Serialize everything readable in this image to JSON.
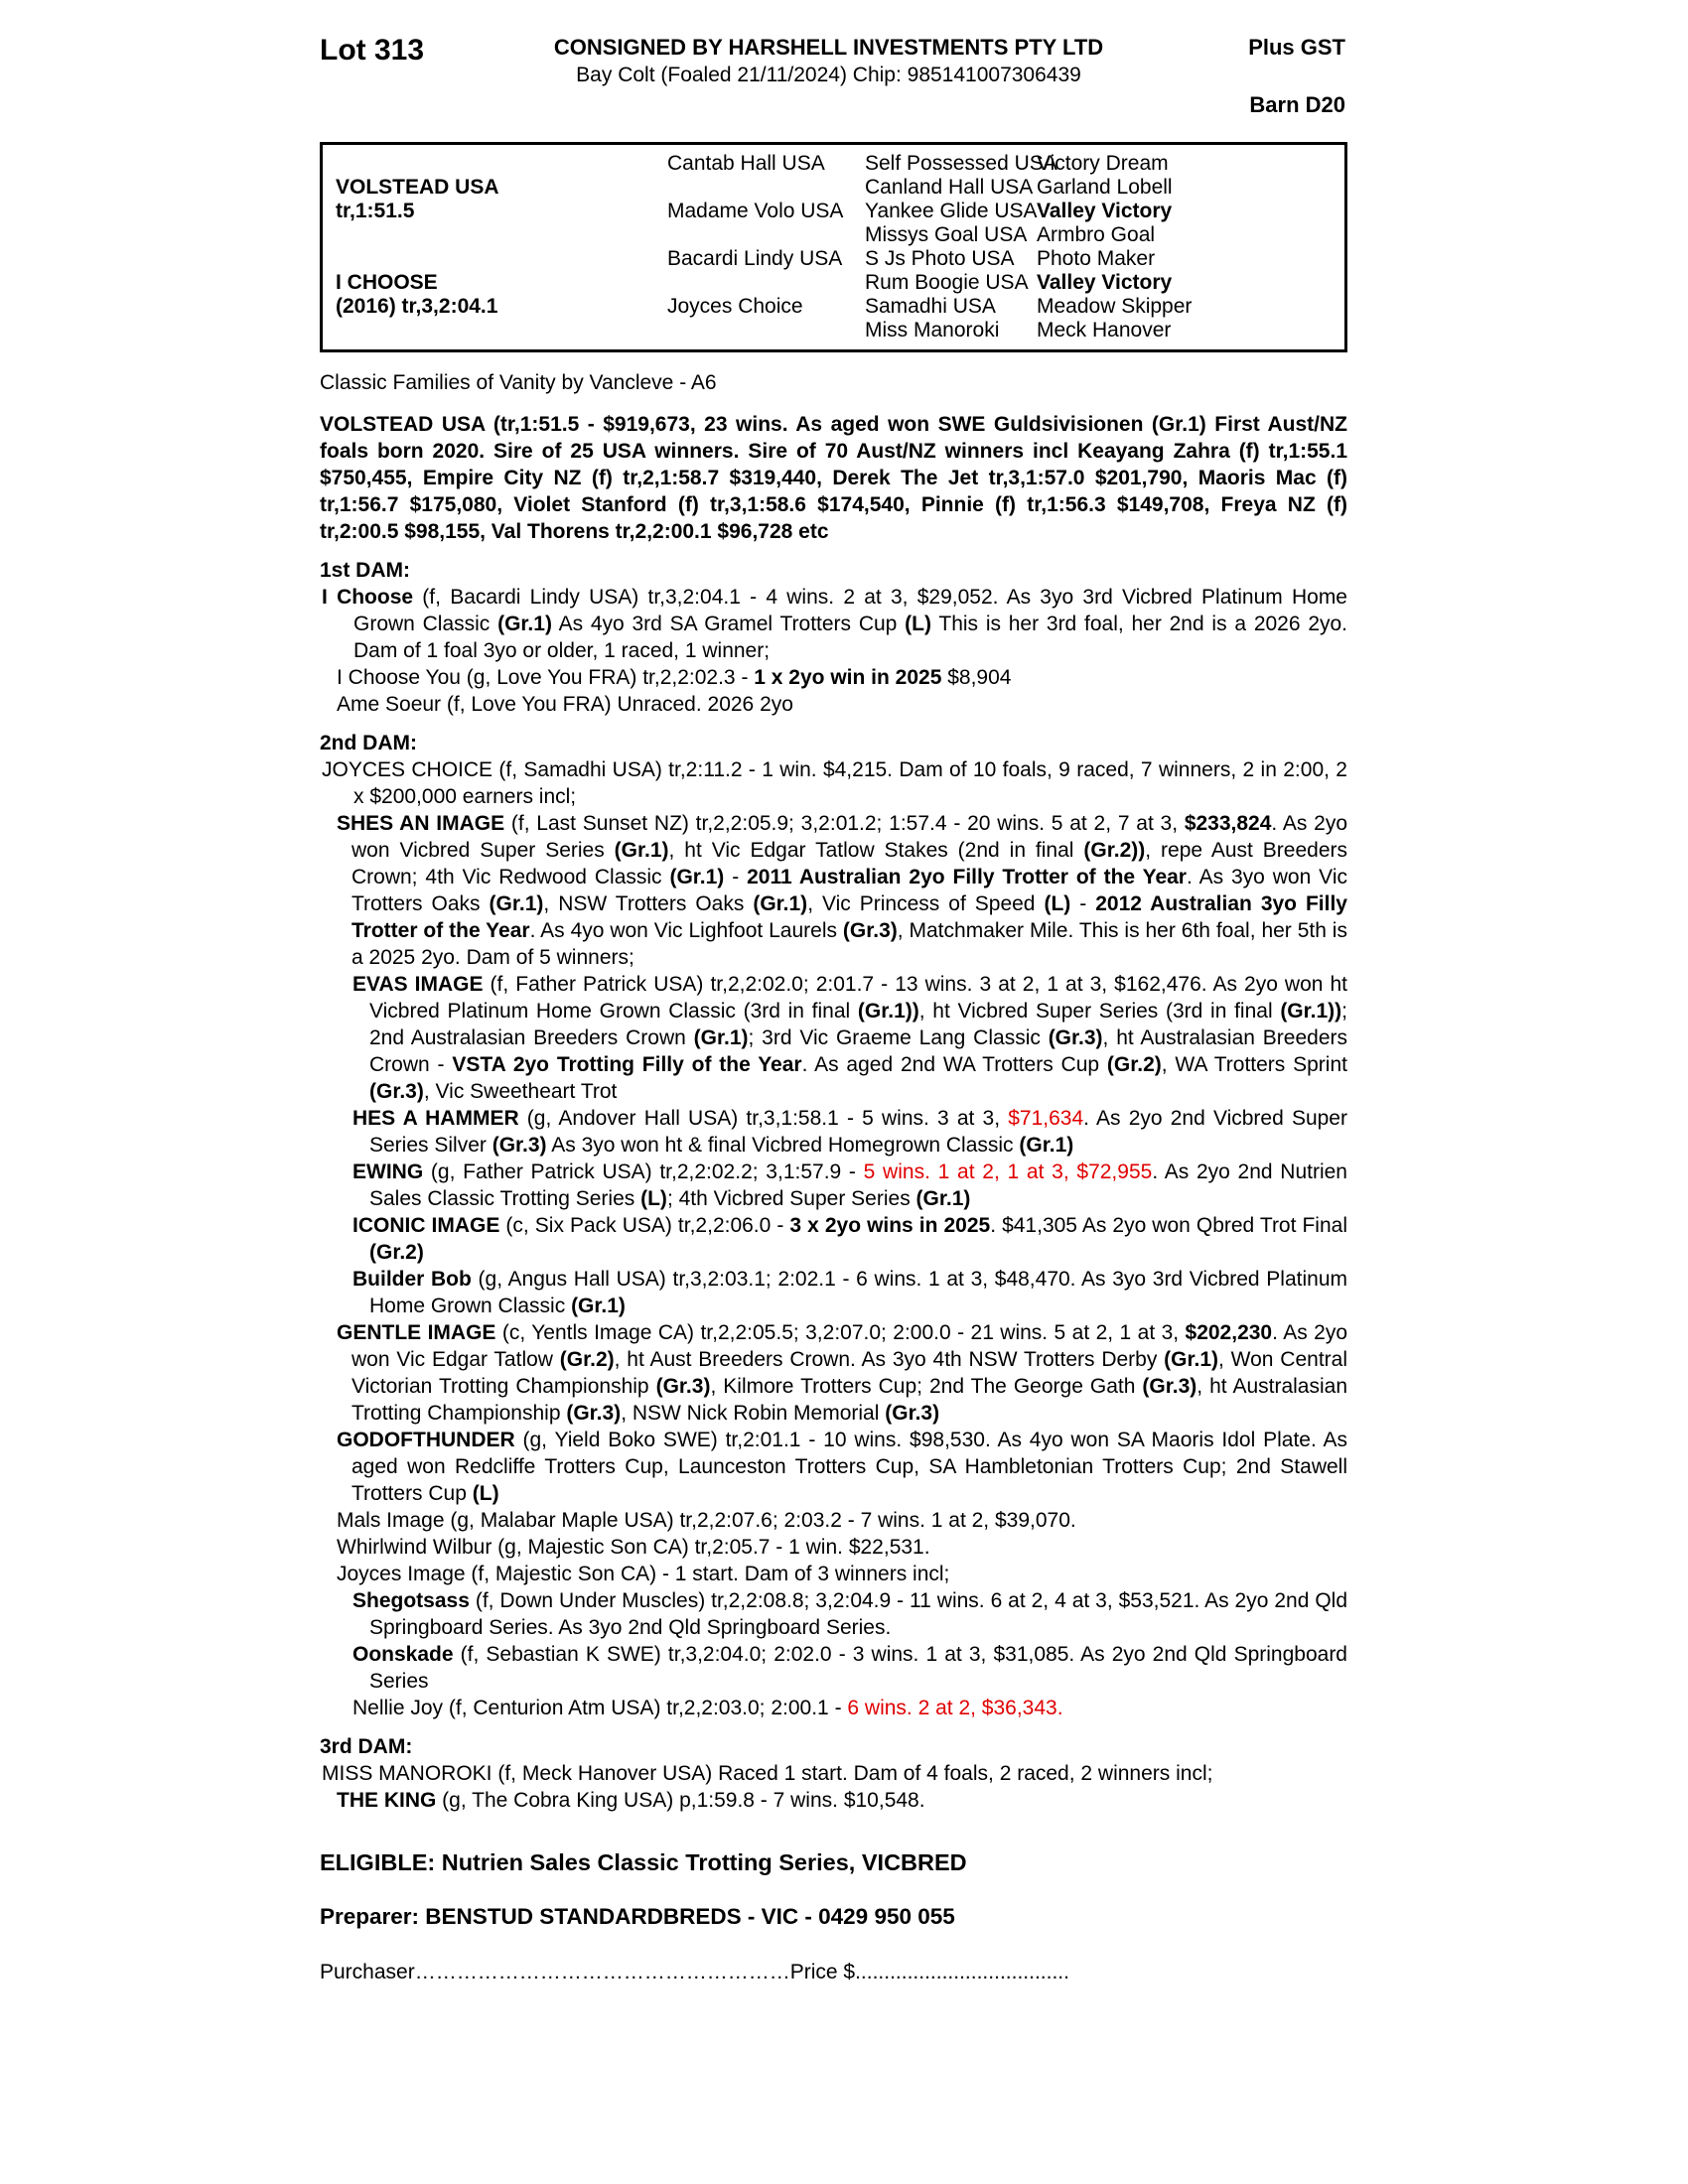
{
  "colors": {
    "highlight_red": "#e00000"
  },
  "header": {
    "lot": "Lot 313",
    "consignor": "CONSIGNED BY HARSHELL INVESTMENTS PTY LTD",
    "plus_gst": "Plus GST",
    "description": "Bay Colt (Foaled 21/11/2024) Chip: 985141007306439",
    "barn": "Barn D20"
  },
  "pedigree": {
    "g1": [
      {
        "name": "VOLSTEAD USA",
        "record": "tr,1:51.5"
      },
      {
        "name": "I CHOOSE",
        "record": "(2016) tr,3,2:04.1"
      }
    ],
    "g2": [
      "Cantab Hall USA",
      "Madame Volo USA",
      "Bacardi Lindy USA",
      "Joyces Choice"
    ],
    "g3": [
      "Self Possessed USA",
      "Canland Hall USA",
      "Yankee Glide USA",
      "Missys Goal USA",
      "S Js Photo USA",
      "Rum Boogie USA",
      "Samadhi USA",
      "Miss Manoroki"
    ],
    "g4": [
      "Victory Dream",
      "Garland Lobell",
      "Valley Victory",
      "Armbro Goal",
      "Photo Maker",
      "Valley Victory",
      "Meadow Skipper",
      "Meck Hanover"
    ]
  },
  "body": {
    "family_line": "Classic Families of Vanity by Vancleve - A6",
    "blocks": [
      {
        "type": "para",
        "cls": "sire-para",
        "name": "sire-summary-paragraph",
        "segments": [
          {
            "t": "VOLSTEAD USA (tr,1:51.5 - $919,673, 23 wins. As aged won SWE Guldsivisionen (Gr.1) First Aust/NZ foals born 2020. Sire of 25 USA winners. Sire of 70 Aust/NZ winners incl Keayang Zahra (f) tr,1:55.1 $750,455, Empire City NZ (f) tr,2,1:58.7 $319,440, Derek The Jet tr,3,1:57.0 $201,790, Maoris Mac (f) tr,1:56.7 $175,080, Violet Stanford (f) tr,3,1:58.6 $174,540, Pinnie (f) tr,1:56.3 $149,708, Freya NZ (f) tr,2:00.5 $98,155, Val Thorens tr,2,2:00.1 $96,728 etc"
          }
        ]
      },
      {
        "type": "heading",
        "text": "1st DAM:"
      },
      {
        "type": "para",
        "indent": 0,
        "segments": [
          {
            "t": "I Choose",
            "b": true
          },
          {
            "t": " (f, Bacardi Lindy USA) tr,3,2:04.1 - 4 wins. 2 at 3, $29,052. As 3yo 3rd Vicbred Platinum Home Grown Classic "
          },
          {
            "t": "(Gr.1)",
            "b": true
          },
          {
            "t": " As 4yo 3rd SA Gramel Trotters Cup "
          },
          {
            "t": "(L)",
            "b": true
          },
          {
            "t": " This is her 3rd foal, her 2nd is a 2026 2yo. Dam of 1 foal 3yo or older, 1 raced, 1 winner;"
          }
        ]
      },
      {
        "type": "para",
        "indent": 1,
        "segments": [
          {
            "t": "I Choose You (g, Love You FRA) tr,2,2:02.3 - "
          },
          {
            "t": "1 x 2yo win in 2025",
            "b": true
          },
          {
            "t": " $8,904"
          }
        ]
      },
      {
        "type": "para",
        "indent": 1,
        "segments": [
          {
            "t": "Ame Soeur (f, Love You FRA) Unraced. 2026 2yo"
          }
        ]
      },
      {
        "type": "heading",
        "text": "2nd DAM:"
      },
      {
        "type": "para",
        "indent": 0,
        "segments": [
          {
            "t": "JOYCES CHOICE (f, Samadhi USA) tr,2:11.2 - 1 win. $4,215. Dam of 10 foals, 9 raced, 7 winners, 2 in 2:00, 2 x $200,000 earners incl;"
          }
        ]
      },
      {
        "type": "para",
        "indent": 1,
        "segments": [
          {
            "t": "SHES AN IMAGE",
            "b": true
          },
          {
            "t": " (f, Last Sunset NZ) tr,2,2:05.9; 3,2:01.2; 1:57.4 - 20 wins. 5 at 2, 7 at 3, "
          },
          {
            "t": "$233,824",
            "b": true
          },
          {
            "t": ". As 2yo won Vicbred Super Series "
          },
          {
            "t": "(Gr.1)",
            "b": true
          },
          {
            "t": ", ht Vic Edgar Tatlow Stakes (2nd in final "
          },
          {
            "t": "(Gr.2))",
            "b": true
          },
          {
            "t": ", repe Aust Breeders Crown; 4th Vic Redwood Classic "
          },
          {
            "t": "(Gr.1)",
            "b": true
          },
          {
            "t": " - "
          },
          {
            "t": "2011 Australian 2yo Filly Trotter of the Year",
            "b": true
          },
          {
            "t": ". As 3yo won Vic Trotters Oaks "
          },
          {
            "t": "(Gr.1)",
            "b": true
          },
          {
            "t": ", NSW Trotters Oaks "
          },
          {
            "t": "(Gr.1)",
            "b": true
          },
          {
            "t": ", Vic Princess of Speed "
          },
          {
            "t": "(L)",
            "b": true
          },
          {
            "t": " - "
          },
          {
            "t": "2012 Australian 3yo Filly Trotter of the Year",
            "b": true
          },
          {
            "t": ". As 4yo won Vic Lighfoot Laurels "
          },
          {
            "t": "(Gr.3)",
            "b": true
          },
          {
            "t": ", Matchmaker Mile. This is her 6th foal, her 5th is a 2025 2yo. Dam of 5 winners;"
          }
        ]
      },
      {
        "type": "para",
        "indent": 2,
        "segments": [
          {
            "t": "EVAS IMAGE",
            "b": true
          },
          {
            "t": " (f, Father Patrick USA) tr,2,2:02.0; 2:01.7 - 13 wins. 3 at 2, 1 at 3, $162,476. As 2yo won ht Vicbred Platinum Home Grown Classic (3rd in final "
          },
          {
            "t": "(Gr.1))",
            "b": true
          },
          {
            "t": ", ht Vicbred Super Series (3rd in final "
          },
          {
            "t": "(Gr.1))",
            "b": true
          },
          {
            "t": "; 2nd Australasian Breeders Crown "
          },
          {
            "t": "(Gr.1)",
            "b": true
          },
          {
            "t": "; 3rd Vic Graeme Lang Classic "
          },
          {
            "t": "(Gr.3)",
            "b": true
          },
          {
            "t": ", ht Australasian Breeders Crown - "
          },
          {
            "t": "VSTA 2yo Trotting Filly of the Year",
            "b": true
          },
          {
            "t": ". As aged 2nd WA Trotters Cup "
          },
          {
            "t": "(Gr.2)",
            "b": true
          },
          {
            "t": ", WA Trotters Sprint "
          },
          {
            "t": "(Gr.3)",
            "b": true
          },
          {
            "t": ", Vic Sweetheart Trot"
          }
        ]
      },
      {
        "type": "para",
        "indent": 2,
        "segments": [
          {
            "t": "HES A HAMMER",
            "b": true
          },
          {
            "t": " (g, Andover Hall USA) tr,3,1:58.1 - 5 wins. 3 at 3, "
          },
          {
            "t": "$71,634",
            "r": true
          },
          {
            "t": ". As 2yo 2nd Vicbred Super Series Silver "
          },
          {
            "t": "(Gr.3)",
            "b": true
          },
          {
            "t": " As 3yo won ht & final Vicbred Homegrown Classic "
          },
          {
            "t": "(Gr.1)",
            "b": true
          }
        ]
      },
      {
        "type": "para",
        "indent": 2,
        "segments": [
          {
            "t": "EWING",
            "b": true
          },
          {
            "t": " (g, Father Patrick USA) tr,2,2:02.2; 3,1:57.9 - "
          },
          {
            "t": "5 wins. 1 at 2, 1 at 3, $72,955",
            "r": true
          },
          {
            "t": ". As 2yo 2nd Nutrien Sales Classic Trotting Series "
          },
          {
            "t": "(L)",
            "b": true
          },
          {
            "t": "; 4th Vicbred Super Series "
          },
          {
            "t": "(Gr.1)",
            "b": true
          }
        ]
      },
      {
        "type": "para",
        "indent": 2,
        "segments": [
          {
            "t": "ICONIC IMAGE",
            "b": true
          },
          {
            "t": " (c, Six Pack USA) tr,2,2:06.0 - "
          },
          {
            "t": "3 x 2yo wins in 2025",
            "b": true
          },
          {
            "t": ". $41,305 As 2yo won Qbred Trot Final "
          },
          {
            "t": "(Gr.2)",
            "b": true
          }
        ]
      },
      {
        "type": "para",
        "indent": 2,
        "segments": [
          {
            "t": "Builder Bob",
            "b": true
          },
          {
            "t": " (g, Angus Hall USA) tr,3,2:03.1; 2:02.1 - 6 wins. 1 at 3, $48,470. As 3yo 3rd Vicbred Platinum Home Grown Classic "
          },
          {
            "t": "(Gr.1)",
            "b": true
          }
        ]
      },
      {
        "type": "para",
        "indent": 1,
        "segments": [
          {
            "t": "GENTLE IMAGE",
            "b": true
          },
          {
            "t": " (c, Yentls Image CA) tr,2,2:05.5; 3,2:07.0; 2:00.0 - 21 wins. 5 at 2, 1 at 3, "
          },
          {
            "t": "$202,230",
            "b": true
          },
          {
            "t": ". As 2yo won Vic Edgar Tatlow "
          },
          {
            "t": "(Gr.2)",
            "b": true
          },
          {
            "t": ", ht Aust Breeders Crown. As 3yo 4th NSW Trotters Derby "
          },
          {
            "t": "(Gr.1)",
            "b": true
          },
          {
            "t": ", Won Central Victorian Trotting Championship "
          },
          {
            "t": "(Gr.3)",
            "b": true
          },
          {
            "t": ", Kilmore Trotters Cup; 2nd The George Gath "
          },
          {
            "t": "(Gr.3)",
            "b": true
          },
          {
            "t": ", ht Australasian Trotting Championship "
          },
          {
            "t": "(Gr.3)",
            "b": true
          },
          {
            "t": ", NSW Nick Robin Memorial "
          },
          {
            "t": "(Gr.3)",
            "b": true
          }
        ]
      },
      {
        "type": "para",
        "indent": 1,
        "segments": [
          {
            "t": "GODOFTHUNDER",
            "b": true
          },
          {
            "t": " (g, Yield Boko SWE) tr,2:01.1 - 10 wins. $98,530. As 4yo won SA Maoris Idol Plate. As aged won Redcliffe Trotters Cup, Launceston Trotters Cup, SA Hambletonian Trotters Cup; 2nd Stawell Trotters Cup "
          },
          {
            "t": "(L)",
            "b": true
          }
        ]
      },
      {
        "type": "para",
        "indent": 1,
        "segments": [
          {
            "t": "Mals Image (g, Malabar Maple USA) tr,2,2:07.6; 2:03.2 - 7 wins. 1 at 2, $39,070."
          }
        ]
      },
      {
        "type": "para",
        "indent": 1,
        "segments": [
          {
            "t": "Whirlwind Wilbur (g, Majestic Son CA) tr,2:05.7 - 1 win. $22,531."
          }
        ]
      },
      {
        "type": "para",
        "indent": 1,
        "segments": [
          {
            "t": "Joyces Image (f, Majestic Son CA) - 1 start. Dam of 3 winners incl;"
          }
        ]
      },
      {
        "type": "para",
        "indent": 2,
        "segments": [
          {
            "t": "Shegotsass",
            "b": true
          },
          {
            "t": " (f, Down Under Muscles) tr,2,2:08.8; 3,2:04.9 - 11 wins. 6 at 2, 4 at 3, $53,521. As 2yo 2nd Qld Springboard Series. As 3yo 2nd Qld Springboard Series."
          }
        ]
      },
      {
        "type": "para",
        "indent": 2,
        "segments": [
          {
            "t": "Oonskade",
            "b": true
          },
          {
            "t": " (f, Sebastian K SWE) tr,3,2:04.0; 2:02.0 - 3 wins. 1 at 3, $31,085. As 2yo 2nd Qld Springboard Series"
          }
        ]
      },
      {
        "type": "para",
        "indent": 2,
        "segments": [
          {
            "t": "Nellie Joy (f, Centurion Atm USA) tr,2,2:03.0; 2:00.1 - "
          },
          {
            "t": "6 wins. 2 at 2, $36,343.",
            "r": true
          }
        ]
      },
      {
        "type": "heading",
        "text": "3rd DAM:"
      },
      {
        "type": "para",
        "indent": 0,
        "segments": [
          {
            "t": "MISS MANOROKI (f, Meck Hanover USA) Raced 1 start. Dam of 4 foals, 2 raced, 2 winners incl;"
          }
        ]
      },
      {
        "type": "para",
        "indent": 1,
        "segments": [
          {
            "t": "THE KING",
            "b": true
          },
          {
            "t": " (g, The Cobra King USA) p,1:59.8 - 7 wins. $10,548."
          }
        ]
      }
    ]
  },
  "footer": {
    "eligible": "ELIGIBLE: Nutrien Sales Classic Trotting Series, VICBRED",
    "preparer": "Preparer: BENSTUD STANDARDBREDS - VIC - 0429 950 055",
    "purchaser_label": "Purchaser",
    "purchaser_leader": "………………………………………………",
    "price_label": "Price $",
    "price_trailer": "....................................."
  }
}
